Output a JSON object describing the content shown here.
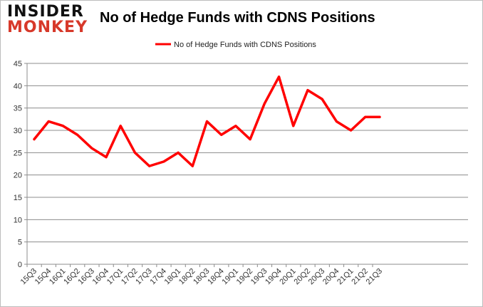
{
  "logo": {
    "line1": "INSIDER",
    "line2": "MONKEY"
  },
  "chart_data": {
    "type": "line",
    "title": "No of Hedge Funds with CDNS Positions",
    "xlabel": "",
    "ylabel": "",
    "categories": [
      "15Q3",
      "15Q4",
      "16Q1",
      "16Q2",
      "16Q3",
      "16Q4",
      "17Q1",
      "17Q2",
      "17Q3",
      "17Q4",
      "18Q1",
      "18Q2",
      "18Q3",
      "18Q4",
      "19Q1",
      "19Q2",
      "19Q3",
      "19Q4",
      "20Q1",
      "20Q2",
      "20Q3",
      "20Q4",
      "21Q1",
      "21Q2",
      "21Q3"
    ],
    "series": [
      {
        "name": "No of Hedge Funds with CDNS Positions",
        "color": "#ff0000",
        "values": [
          28,
          32,
          31,
          29,
          26,
          24,
          31,
          25,
          22,
          23,
          25,
          22,
          32,
          29,
          31,
          28,
          36,
          42,
          31,
          39,
          37,
          32,
          30,
          33,
          33
        ]
      }
    ],
    "ylim": [
      0,
      45
    ],
    "yticks": [
      0,
      5,
      10,
      15,
      20,
      25,
      30,
      35,
      40,
      45
    ],
    "grid": true,
    "legend_position": "top"
  }
}
